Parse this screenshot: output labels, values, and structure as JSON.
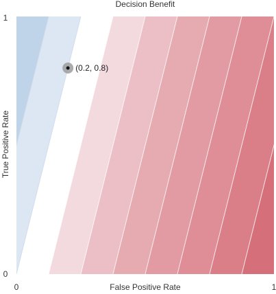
{
  "chart_data": {
    "type": "heatmap",
    "title": "Decision Benefit",
    "xlabel": "False Positive Rate",
    "ylabel": "True Positive Rate",
    "xlim": [
      0,
      1
    ],
    "ylim": [
      0,
      1
    ],
    "x_ticks": [
      "0",
      "1"
    ],
    "y_ticks": [
      "0",
      "1"
    ],
    "contour_field": "benefit = 4*FPR - TPR (iso-lines run parallel to the slope 4)",
    "contour_slope": 4,
    "contour_levels": [
      -1.0,
      -0.5,
      0.0,
      0.5,
      1.0,
      1.5,
      2.0,
      2.5,
      3.0,
      3.5,
      4.0
    ],
    "band_colors": [
      "#c0d4e9",
      "#dce7f3",
      "#ffffff",
      "#f2dadf",
      "#ebbfc5",
      "#e6abb1",
      "#e29ba2",
      "#df8d96",
      "#da7f88",
      "#d5707b"
    ],
    "line_color": "#ffffff",
    "marked_point": {
      "x": 0.2,
      "y": 0.8,
      "label": "(0.2, 0.8)"
    },
    "grid": false,
    "legend": "none"
  }
}
